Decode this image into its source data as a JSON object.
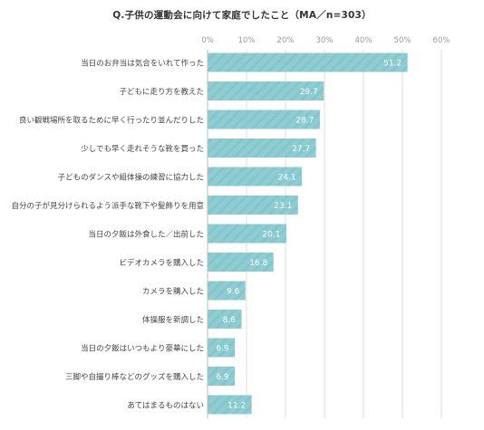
{
  "chart_data": {
    "type": "bar",
    "orientation": "horizontal",
    "title": "Q.子供の運動会に向けて家庭でしたこと（MA／n=303）",
    "categories": [
      "当日のお弁当は気合をいれて作った",
      "子どもに走り方を教えた",
      "良い観戦場所を取るために早く行ったり並んだりした",
      "少しでも早く走れそうな靴を買った",
      "子どものダンスや組体操の練習に協力した",
      "自分の子が見分けられるよう派手な靴下や髪飾りを用意",
      "当日の夕飯は外食した／出前した",
      "ビデオカメラを購入した",
      "カメラを購入した",
      "体操服を新調した",
      "当日の夕飯はいつもより豪華にした",
      "三脚や自撮り棒などのグッズを購入した",
      "あてはまるものはない"
    ],
    "values": [
      51.2,
      29.7,
      28.7,
      27.7,
      24.1,
      23.1,
      20.1,
      16.8,
      9.6,
      8.6,
      6.9,
      6.9,
      11.2
    ],
    "value_labels": [
      "51.2",
      "29.7",
      "28.7",
      "27.7",
      "24.1",
      "23.1",
      "20.1",
      "16.8",
      "9.6",
      "8.6",
      "6.9",
      "6.9",
      "11.2"
    ],
    "xlim": [
      0,
      60
    ],
    "xticks": [
      0,
      10,
      20,
      30,
      40,
      50,
      60
    ],
    "xtick_labels": [
      "0%",
      "10%",
      "20%",
      "30%",
      "40%",
      "50%",
      "60%"
    ],
    "grid": true,
    "bar_color": "#8ecdd2",
    "bar_stripe_color": "#7fc2c8",
    "grid_color": "#dddddd",
    "axis_color": "#bbbbbb"
  }
}
